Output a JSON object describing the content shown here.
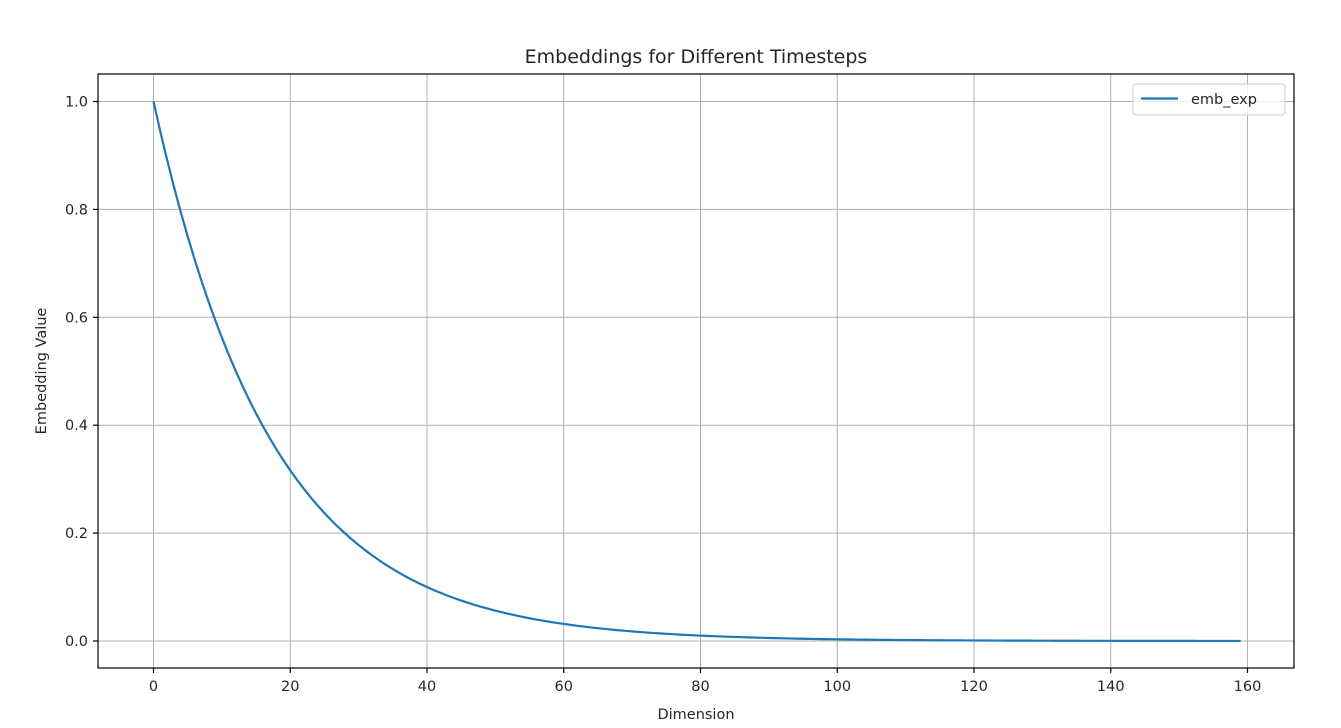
{
  "chart_data": {
    "type": "line",
    "title": "Embeddings for Different Timesteps",
    "xlabel": "Dimension",
    "ylabel": "Embedding Value",
    "xlim": [
      -8,
      167.5
    ],
    "ylim": [
      -0.05,
      1.05
    ],
    "xticks": [
      0,
      20,
      40,
      60,
      80,
      100,
      120,
      140,
      160
    ],
    "xtick_labels": [
      "0",
      "20",
      "40",
      "60",
      "80",
      "100",
      "120",
      "140",
      "160"
    ],
    "yticks": [
      0.0,
      0.2,
      0.4,
      0.6,
      0.8,
      1.0
    ],
    "ytick_labels": [
      "0.0",
      "0.2",
      "0.4",
      "0.6",
      "0.8",
      "1.0"
    ],
    "grid": true,
    "legend_position": "upper right",
    "series": [
      {
        "name": "emb_exp",
        "color": "#1f77b4",
        "x_start": 0,
        "x_end": 159,
        "formula": "y = exp(-x * ln(10) / 40)",
        "sample_points": [
          [
            0,
            1.0
          ],
          [
            10,
            0.562
          ],
          [
            20,
            0.316
          ],
          [
            30,
            0.178
          ],
          [
            40,
            0.1
          ],
          [
            50,
            0.056
          ],
          [
            60,
            0.032
          ],
          [
            80,
            0.01
          ],
          [
            100,
            0.003
          ],
          [
            120,
            0.001
          ],
          [
            140,
            0.0003
          ],
          [
            159,
            0.0001
          ]
        ]
      }
    ]
  },
  "legend": {
    "items": [
      {
        "label": "emb_exp",
        "color": "#1f77b4"
      }
    ]
  },
  "colors": {
    "line": "#1f77b4",
    "grid": "#b0b0b0",
    "axes": "#000000",
    "text": "#262626"
  }
}
